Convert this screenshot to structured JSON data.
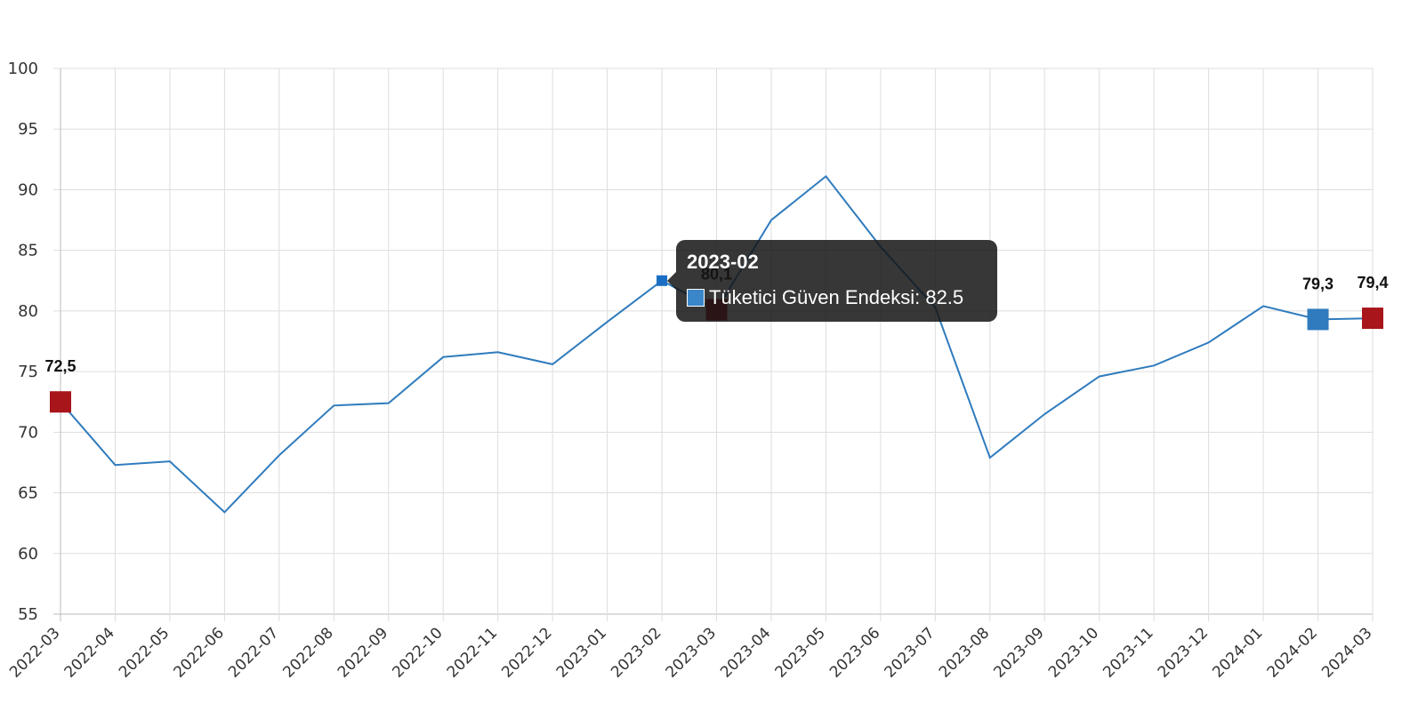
{
  "chart_data": {
    "type": "line",
    "title": "",
    "xlabel": "",
    "ylabel": "",
    "ylim": [
      55,
      100
    ],
    "yticks": [
      55,
      60,
      65,
      70,
      75,
      80,
      85,
      90,
      95,
      100
    ],
    "grid": true,
    "categories": [
      "2022-03",
      "2022-04",
      "2022-05",
      "2022-06",
      "2022-07",
      "2022-08",
      "2022-09",
      "2022-10",
      "2022-11",
      "2022-12",
      "2023-01",
      "2023-02",
      "2023-03",
      "2023-04",
      "2023-05",
      "2023-06",
      "2023-07",
      "2023-08",
      "2023-09",
      "2023-10",
      "2023-11",
      "2023-12",
      "2024-01",
      "2024-02",
      "2024-03"
    ],
    "series": [
      {
        "name": "Tüketici Güven Endeksi",
        "color": "#2f7bbd",
        "values": [
          72.5,
          67.3,
          67.6,
          63.4,
          68.1,
          72.2,
          72.4,
          76.2,
          76.6,
          75.6,
          79.1,
          82.5,
          80.1,
          87.5,
          91.1,
          85.3,
          80.3,
          67.9,
          71.5,
          74.6,
          75.5,
          77.4,
          80.4,
          79.3,
          79.4
        ]
      }
    ],
    "highlight_markers": [
      {
        "category": "2022-03",
        "label": "72,5",
        "color": "#a8151b"
      },
      {
        "category": "2023-03",
        "label": "80,1",
        "color": "#a8151b"
      },
      {
        "category": "2024-02",
        "label": "79,3",
        "color": "#2f7bbd"
      },
      {
        "category": "2024-03",
        "label": "79,4",
        "color": "#a8151b"
      }
    ],
    "tooltip": {
      "title": "2023-02",
      "text": "Tüketici Güven Endeksi: 82.5",
      "category": "2023-02"
    }
  }
}
